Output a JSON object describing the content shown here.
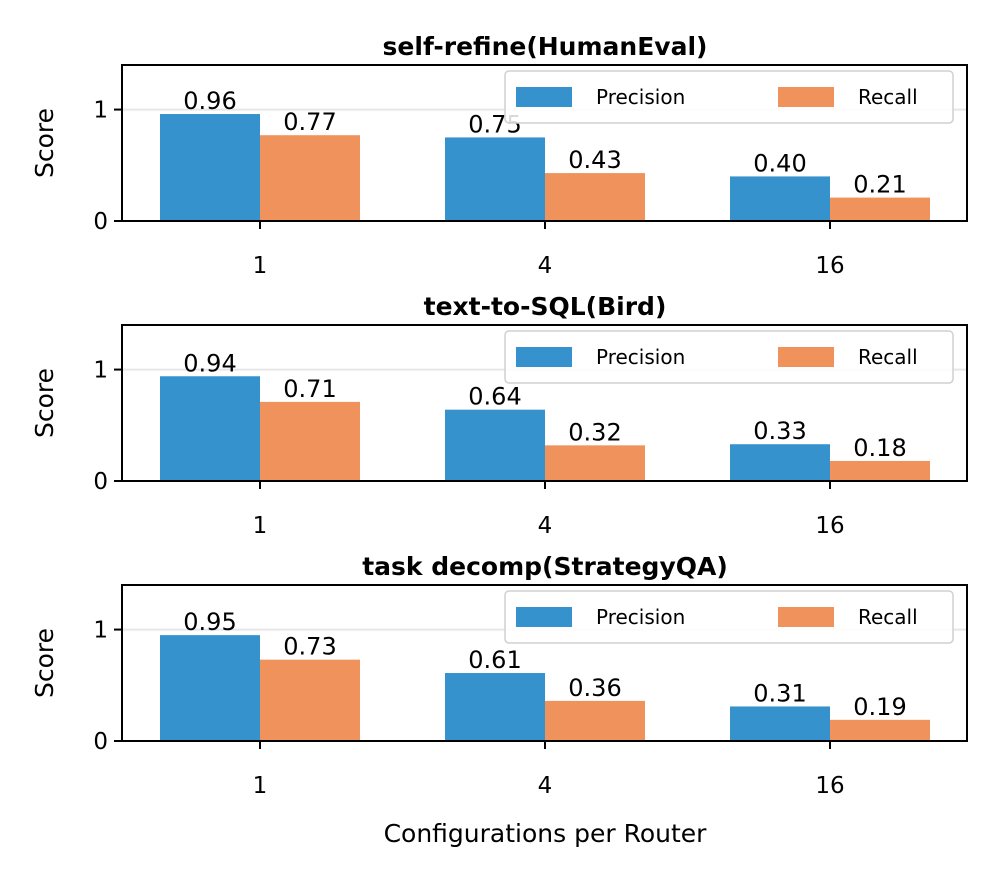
{
  "figure": {
    "xlabel": "Configurations per Router"
  },
  "colors": {
    "precision": "#3592cc",
    "recall": "#f0925c"
  },
  "chart_data": [
    {
      "type": "bar",
      "title": "self-refine(HumanEval)",
      "xlabel": "",
      "ylabel": "Score",
      "categories": [
        "1",
        "4",
        "16"
      ],
      "ylim": [
        0,
        1.4
      ],
      "yticks": [
        "0",
        "1"
      ],
      "series": [
        {
          "name": "Precision",
          "values": [
            0.96,
            0.75,
            0.4
          ],
          "labels": [
            "0.96",
            "0.75",
            "0.40"
          ]
        },
        {
          "name": "Recall",
          "values": [
            0.77,
            0.43,
            0.21
          ],
          "labels": [
            "0.77",
            "0.43",
            "0.21"
          ]
        }
      ],
      "legend": "top-right",
      "grid": "y"
    },
    {
      "type": "bar",
      "title": "text-to-SQL(Bird)",
      "xlabel": "",
      "ylabel": "Score",
      "categories": [
        "1",
        "4",
        "16"
      ],
      "ylim": [
        0,
        1.4
      ],
      "yticks": [
        "0",
        "1"
      ],
      "series": [
        {
          "name": "Precision",
          "values": [
            0.94,
            0.64,
            0.33
          ],
          "labels": [
            "0.94",
            "0.64",
            "0.33"
          ]
        },
        {
          "name": "Recall",
          "values": [
            0.71,
            0.32,
            0.18
          ],
          "labels": [
            "0.71",
            "0.32",
            "0.18"
          ]
        }
      ],
      "legend": "top-right",
      "grid": "y"
    },
    {
      "type": "bar",
      "title": "task decomp(StrategyQA)",
      "xlabel": "Configurations per Router",
      "ylabel": "Score",
      "categories": [
        "1",
        "4",
        "16"
      ],
      "ylim": [
        0,
        1.4
      ],
      "yticks": [
        "0",
        "1"
      ],
      "series": [
        {
          "name": "Precision",
          "values": [
            0.95,
            0.61,
            0.31
          ],
          "labels": [
            "0.95",
            "0.61",
            "0.31"
          ]
        },
        {
          "name": "Recall",
          "values": [
            0.73,
            0.36,
            0.19
          ],
          "labels": [
            "0.73",
            "0.36",
            "0.19"
          ]
        }
      ],
      "legend": "top-right",
      "grid": "y"
    }
  ]
}
